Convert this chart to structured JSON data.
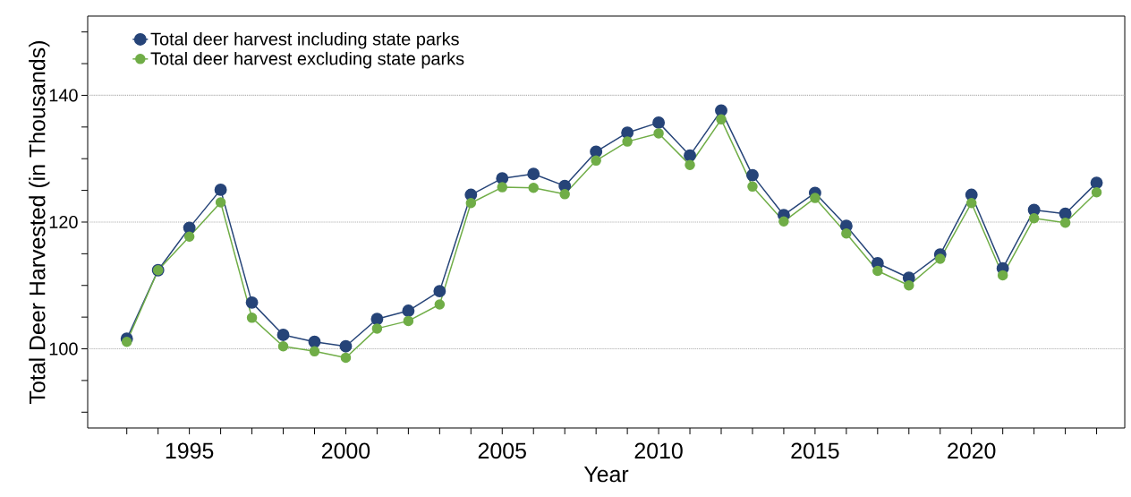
{
  "chart_data": {
    "type": "line",
    "xlabel": "Year",
    "ylabel": "Total Deer Harvested (in Thousands)",
    "x": [
      1993,
      1994,
      1995,
      1996,
      1997,
      1998,
      1999,
      2000,
      2001,
      2002,
      2003,
      2004,
      2005,
      2006,
      2007,
      2008,
      2009,
      2010,
      2011,
      2012,
      2013,
      2014,
      2015,
      2016,
      2017,
      2018,
      2019,
      2020,
      2021,
      2022,
      2023,
      2024
    ],
    "series": [
      {
        "name": "Total deer harvest including state parks",
        "color": "#264478",
        "values": [
          101.6,
          112.4,
          119.1,
          125.1,
          107.3,
          102.2,
          101.1,
          100.4,
          104.7,
          106.0,
          109.1,
          124.3,
          126.9,
          127.6,
          125.7,
          131.1,
          134.1,
          135.7,
          130.5,
          137.6,
          127.4,
          121.1,
          124.6,
          119.4,
          113.5,
          111.2,
          114.9,
          124.3,
          112.7,
          121.9,
          121.3,
          126.2
        ]
      },
      {
        "name": "Total deer harvest excluding state parks",
        "color": "#70ad47",
        "values": [
          101.1,
          112.4,
          117.7,
          123.1,
          104.9,
          100.4,
          99.6,
          98.6,
          103.2,
          104.4,
          107.0,
          123.0,
          125.5,
          125.4,
          124.4,
          129.7,
          132.7,
          134.0,
          129.0,
          136.2,
          125.6,
          120.1,
          123.8,
          118.2,
          112.3,
          110.0,
          114.2,
          123.0,
          111.6,
          120.6,
          119.9,
          124.7
        ]
      }
    ],
    "xlim": [
      1991.75,
      2024.9
    ],
    "ylim": [
      87.5,
      152.5
    ],
    "xticks": [
      {
        "value": 1993,
        "label": null
      },
      {
        "value": 1994,
        "label": null
      },
      1995,
      {
        "value": 1996,
        "label": null
      },
      {
        "value": 1997,
        "label": null
      },
      {
        "value": 1998,
        "label": null
      },
      {
        "value": 1999,
        "label": null
      },
      2000,
      {
        "value": 2001,
        "label": null
      },
      {
        "value": 2002,
        "label": null
      },
      {
        "value": 2003,
        "label": null
      },
      {
        "value": 2004,
        "label": null
      },
      2005,
      {
        "value": 2006,
        "label": null
      },
      {
        "value": 2007,
        "label": null
      },
      {
        "value": 2008,
        "label": null
      },
      {
        "value": 2009,
        "label": null
      },
      2010,
      {
        "value": 2011,
        "label": null
      },
      {
        "value": 2012,
        "label": null
      },
      {
        "value": 2013,
        "label": null
      },
      {
        "value": 2014,
        "label": null
      },
      2015,
      {
        "value": 2016,
        "label": null
      },
      {
        "value": 2017,
        "label": null
      },
      {
        "value": 2018,
        "label": null
      },
      {
        "value": 2019,
        "label": null
      },
      2020,
      {
        "value": 2021,
        "label": null
      },
      {
        "value": 2022,
        "label": null
      },
      {
        "value": 2023,
        "label": null
      },
      {
        "value": 2024,
        "label": null
      }
    ],
    "yticks": [
      {
        "value": 90,
        "label": null
      },
      {
        "value": 95,
        "label": null
      },
      100,
      {
        "value": 105,
        "label": null
      },
      {
        "value": 110,
        "label": null
      },
      {
        "value": 115,
        "label": null
      },
      120,
      {
        "value": 125,
        "label": null
      },
      {
        "value": 130,
        "label": null
      },
      {
        "value": 135,
        "label": null
      },
      140,
      {
        "value": 145,
        "label": null
      },
      {
        "value": 150,
        "label": null
      }
    ],
    "grid": "y",
    "legend": "top left",
    "marker": "circle",
    "line_style": "solid"
  }
}
